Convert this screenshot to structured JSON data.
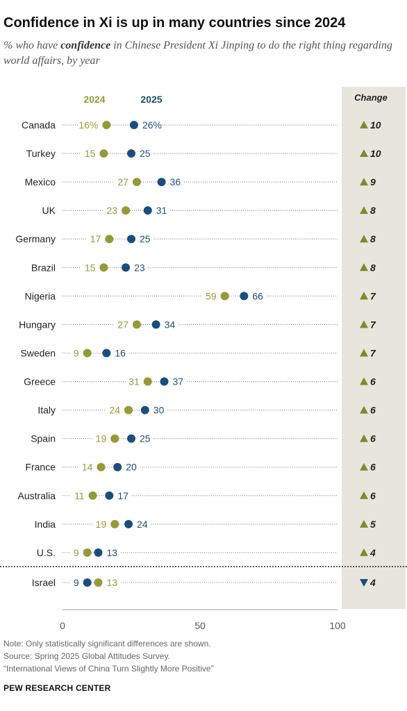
{
  "title": "Confidence in Xi is up in many countries since 2024",
  "subtitle": {
    "before": "% who have ",
    "emphasis": "confidence",
    "after": " in Chinese President Xi Jinping to do the right thing regarding world affairs, by year"
  },
  "colors": {
    "y2024": "#949a36",
    "y2025": "#1a4e7c",
    "panel": "#e8e5dc",
    "up": "#7d8a2e",
    "down": "#1a4e7c"
  },
  "chart_data": {
    "type": "dot",
    "series_names": [
      "2024",
      "2025"
    ],
    "change_header": "Change",
    "xlim": [
      0,
      100
    ],
    "xticks": [
      "0",
      "50",
      "100"
    ],
    "rows": [
      {
        "country": "Canada",
        "v2024": 16,
        "v2025": 26,
        "l2024": "16%",
        "l2025": "26%",
        "change": "10",
        "dir": "up"
      },
      {
        "country": "Turkey",
        "v2024": 15,
        "v2025": 25,
        "l2024": "15",
        "l2025": "25",
        "change": "10",
        "dir": "up"
      },
      {
        "country": "Mexico",
        "v2024": 27,
        "v2025": 36,
        "l2024": "27",
        "l2025": "36",
        "change": "9",
        "dir": "up"
      },
      {
        "country": "UK",
        "v2024": 23,
        "v2025": 31,
        "l2024": "23",
        "l2025": "31",
        "change": "8",
        "dir": "up"
      },
      {
        "country": "Germany",
        "v2024": 17,
        "v2025": 25,
        "l2024": "17",
        "l2025": "25",
        "change": "8",
        "dir": "up"
      },
      {
        "country": "Brazil",
        "v2024": 15,
        "v2025": 23,
        "l2024": "15",
        "l2025": "23",
        "change": "8",
        "dir": "up"
      },
      {
        "country": "Nigeria",
        "v2024": 59,
        "v2025": 66,
        "l2024": "59",
        "l2025": "66",
        "change": "7",
        "dir": "up"
      },
      {
        "country": "Hungary",
        "v2024": 27,
        "v2025": 34,
        "l2024": "27",
        "l2025": "34",
        "change": "7",
        "dir": "up"
      },
      {
        "country": "Sweden",
        "v2024": 9,
        "v2025": 16,
        "l2024": "9",
        "l2025": "16",
        "change": "7",
        "dir": "up"
      },
      {
        "country": "Greece",
        "v2024": 31,
        "v2025": 37,
        "l2024": "31",
        "l2025": "37",
        "change": "6",
        "dir": "up"
      },
      {
        "country": "Italy",
        "v2024": 24,
        "v2025": 30,
        "l2024": "24",
        "l2025": "30",
        "change": "6",
        "dir": "up"
      },
      {
        "country": "Spain",
        "v2024": 19,
        "v2025": 25,
        "l2024": "19",
        "l2025": "25",
        "change": "6",
        "dir": "up"
      },
      {
        "country": "France",
        "v2024": 14,
        "v2025": 20,
        "l2024": "14",
        "l2025": "20",
        "change": "6",
        "dir": "up"
      },
      {
        "country": "Australia",
        "v2024": 11,
        "v2025": 17,
        "l2024": "11",
        "l2025": "17",
        "change": "6",
        "dir": "up"
      },
      {
        "country": "India",
        "v2024": 19,
        "v2025": 24,
        "l2024": "19",
        "l2025": "24",
        "change": "5",
        "dir": "up"
      },
      {
        "country": "U.S.",
        "v2024": 9,
        "v2025": 13,
        "l2024": "9",
        "l2025": "13",
        "change": "4",
        "dir": "up"
      },
      {
        "country": "Israel",
        "v2024": 13,
        "v2025": 9,
        "l2024": "13",
        "l2025": "9",
        "change": "4",
        "dir": "down"
      }
    ]
  },
  "notes": {
    "note": "Note: Only statistically significant differences are shown.",
    "source": "Source: Spring 2025 Global Attitudes Survey.",
    "report": "“International Views of China Turn Slightly More Positive”"
  },
  "brand": "PEW RESEARCH CENTER"
}
